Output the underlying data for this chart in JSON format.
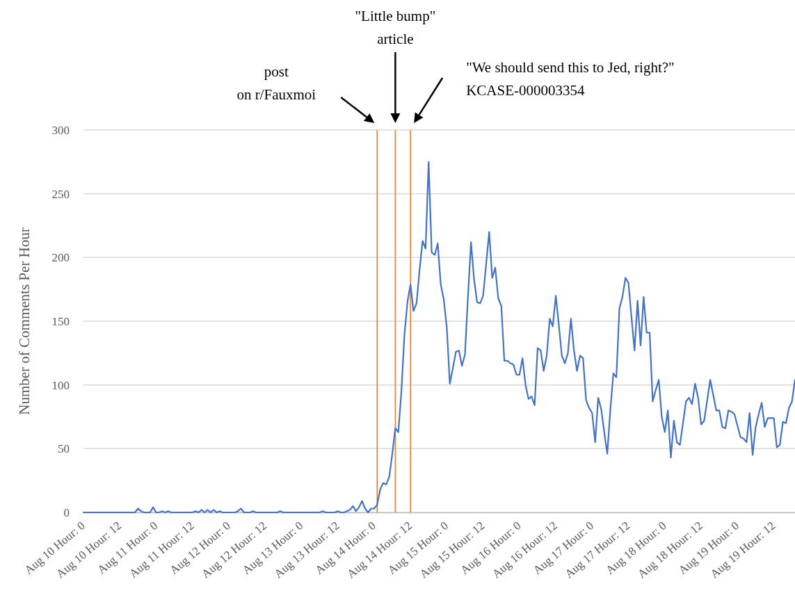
{
  "chart_data": {
    "type": "line",
    "ylabel": "Number of Comments Per Hour",
    "categories": [
      "Aug 10 Hour: 0",
      null,
      null,
      null,
      null,
      null,
      null,
      null,
      null,
      null,
      null,
      null,
      "Aug 10 Hour: 12",
      null,
      null,
      null,
      null,
      null,
      null,
      null,
      null,
      null,
      null,
      null,
      "Aug 11 Hour: 0",
      null,
      null,
      null,
      null,
      null,
      null,
      null,
      null,
      null,
      null,
      null,
      "Aug 11 Hour: 12",
      null,
      null,
      null,
      null,
      null,
      null,
      null,
      null,
      null,
      null,
      null,
      "Aug 12 Hour: 0",
      null,
      null,
      null,
      null,
      null,
      null,
      null,
      null,
      null,
      null,
      null,
      "Aug 12 Hour: 12",
      null,
      null,
      null,
      null,
      null,
      null,
      null,
      null,
      null,
      null,
      null,
      "Aug 13 Hour: 0",
      null,
      null,
      null,
      null,
      null,
      null,
      null,
      null,
      null,
      null,
      null,
      "Aug 13 Hour: 12",
      null,
      null,
      null,
      null,
      null,
      null,
      null,
      null,
      null,
      null,
      null,
      "Aug 14 Hour: 0",
      null,
      null,
      null,
      null,
      null,
      null,
      null,
      null,
      null,
      null,
      null,
      "Aug 14 Hour: 12",
      null,
      null,
      null,
      null,
      null,
      null,
      null,
      null,
      null,
      null,
      null,
      "Aug 15 Hour: 0",
      null,
      null,
      null,
      null,
      null,
      null,
      null,
      null,
      null,
      null,
      null,
      "Aug 15 Hour: 12",
      null,
      null,
      null,
      null,
      null,
      null,
      null,
      null,
      null,
      null,
      null,
      "Aug 16 Hour: 0",
      null,
      null,
      null,
      null,
      null,
      null,
      null,
      null,
      null,
      null,
      null,
      "Aug 16 Hour: 12",
      null,
      null,
      null,
      null,
      null,
      null,
      null,
      null,
      null,
      null,
      null,
      "Aug 17 Hour: 0",
      null,
      null,
      null,
      null,
      null,
      null,
      null,
      null,
      null,
      null,
      null,
      "Aug 17 Hour: 12",
      null,
      null,
      null,
      null,
      null,
      null,
      null,
      null,
      null,
      null,
      null,
      "Aug 18 Hour: 0",
      null,
      null,
      null,
      null,
      null,
      null,
      null,
      null,
      null,
      null,
      null,
      "Aug 18 Hour: 12",
      null,
      null,
      null,
      null,
      null,
      null,
      null,
      null,
      null,
      null,
      null,
      "Aug 19 Hour: 0",
      null,
      null,
      null,
      null,
      null,
      null,
      null,
      null,
      null,
      null,
      null,
      "Aug 19 Hour: 12",
      null,
      null,
      null,
      null,
      null,
      null,
      null
    ],
    "series": [
      {
        "color": "#4472c4",
        "values": [
          0,
          0,
          0,
          0,
          0,
          0,
          0,
          0,
          0,
          0,
          0,
          0,
          0,
          0,
          0,
          0,
          0,
          0,
          3,
          1,
          0,
          0,
          0,
          4,
          0,
          0,
          1,
          0,
          1,
          0,
          0,
          0,
          0,
          0,
          0,
          0,
          0,
          1,
          0,
          2,
          0,
          2,
          0,
          2,
          0,
          1,
          0,
          0,
          0,
          0,
          0,
          1,
          3,
          0,
          0,
          0,
          1,
          0,
          0,
          0,
          0,
          0,
          0,
          0,
          0,
          1,
          0,
          0,
          0,
          0,
          0,
          0,
          0,
          0,
          0,
          0,
          0,
          0,
          0,
          1,
          0,
          0,
          0,
          0,
          1,
          0,
          0,
          1,
          2,
          5,
          1,
          4,
          9,
          3,
          0,
          3,
          3,
          6,
          18,
          23,
          22,
          28,
          46,
          66,
          63,
          95,
          139,
          165,
          179,
          158,
          164,
          190,
          213,
          207,
          275,
          204,
          202,
          211,
          179,
          167,
          145,
          101,
          113,
          126,
          127,
          115,
          124,
          170,
          212,
          183,
          165,
          164,
          170,
          195,
          220,
          184,
          192,
          168,
          162,
          119,
          119,
          117,
          116,
          108,
          108,
          121,
          100,
          89,
          91,
          84,
          129,
          127,
          111,
          123,
          152,
          146,
          170,
          147,
          123,
          117,
          125,
          152,
          127,
          111,
          123,
          121,
          88,
          82,
          78,
          55,
          90,
          81,
          63,
          46,
          80,
          109,
          106,
          160,
          169,
          184,
          180,
          153,
          127,
          166,
          131,
          169,
          141,
          141,
          87,
          96,
          104,
          75,
          63,
          80,
          43,
          72,
          55,
          53,
          70,
          87,
          90,
          85,
          101,
          90,
          69,
          72,
          88,
          104,
          92,
          80,
          80,
          67,
          66,
          80,
          79,
          77,
          68,
          59,
          58,
          55,
          78,
          45,
          67,
          77,
          86,
          67,
          74,
          74,
          74,
          51,
          53,
          71,
          70,
          82,
          87,
          104
        ]
      }
    ],
    "ylim": [
      0,
      300
    ],
    "yticks": [
      0,
      50,
      100,
      150,
      200,
      250,
      300
    ],
    "grid": "y",
    "annotations": [
      "post\non r/Fauxmoi",
      "\"Little bump\"\narticle",
      "\"We should send this to Jed, right?\"\nKCASE-000003354"
    ]
  }
}
